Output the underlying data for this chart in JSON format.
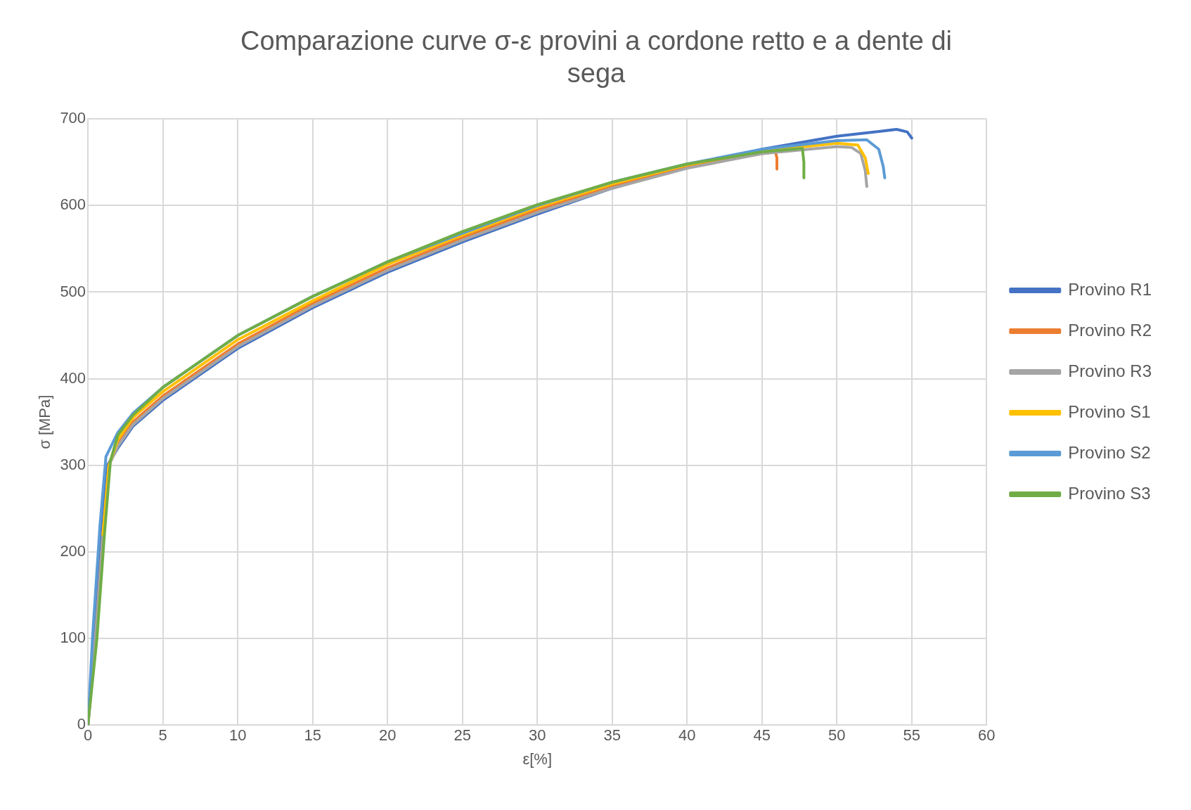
{
  "chart_data": {
    "type": "line",
    "title": "Comparazione curve σ-ε provini a cordone retto e a dente di sega",
    "xlabel": "ε[%]",
    "ylabel": "σ [MPa]",
    "xlim": [
      0,
      60
    ],
    "xticks": [
      0,
      5,
      10,
      15,
      20,
      25,
      30,
      35,
      40,
      45,
      50,
      55,
      60
    ],
    "ylim": [
      0,
      700
    ],
    "yticks": [
      0,
      100,
      200,
      300,
      400,
      500,
      600,
      700
    ],
    "grid": true,
    "legend": "right",
    "marker": "none",
    "line_style": "solid",
    "series": [
      {
        "name": "Provino R1",
        "color": "#4472c4",
        "x": [
          0,
          0.4,
          0.9,
          1.3,
          2,
          3,
          5,
          10,
          15,
          20,
          25,
          30,
          35,
          40,
          45,
          50,
          53,
          54,
          54.7,
          55
        ],
        "values": [
          0,
          100,
          230,
          300,
          320,
          345,
          375,
          435,
          482,
          523,
          558,
          590,
          620,
          645,
          665,
          680,
          686,
          688,
          685,
          678
        ]
      },
      {
        "name": "Provino R2",
        "color": "#ed7d31",
        "x": [
          0,
          0.5,
          1,
          1.4,
          2,
          3,
          5,
          10,
          15,
          20,
          25,
          30,
          35,
          40,
          45,
          45.9,
          46,
          46
        ],
        "values": [
          0,
          100,
          220,
          300,
          325,
          350,
          380,
          440,
          487,
          528,
          563,
          595,
          623,
          646,
          660,
          662,
          655,
          642
        ]
      },
      {
        "name": "Provino R3",
        "color": "#a5a5a5",
        "x": [
          0,
          0.5,
          1,
          1.4,
          2,
          3,
          5,
          10,
          15,
          20,
          25,
          30,
          35,
          40,
          45,
          50,
          51,
          51.6,
          51.9,
          52
        ],
        "values": [
          0,
          100,
          220,
          300,
          322,
          347,
          377,
          437,
          484,
          525,
          560,
          592,
          620,
          643,
          660,
          668,
          667,
          660,
          640,
          622
        ]
      },
      {
        "name": "Provino S1",
        "color": "#ffc000",
        "x": [
          1,
          1.4,
          2,
          3,
          5,
          10,
          15,
          20,
          25,
          30,
          35,
          40,
          45,
          50,
          51.4,
          51.9,
          52.1
        ],
        "values": [
          220,
          300,
          330,
          355,
          385,
          445,
          490,
          532,
          566,
          598,
          625,
          647,
          663,
          672,
          670,
          655,
          637
        ]
      },
      {
        "name": "Provino S2",
        "color": "#5b9bd5",
        "x": [
          0,
          0.3,
          0.8,
          1.2,
          2,
          3,
          5,
          10,
          15,
          20,
          25,
          30,
          35,
          40,
          45,
          50,
          52,
          52.8,
          53.1,
          53.2
        ],
        "values": [
          0,
          100,
          230,
          310,
          338,
          360,
          390,
          450,
          495,
          535,
          568,
          600,
          627,
          648,
          665,
          675,
          676,
          665,
          645,
          632
        ]
      },
      {
        "name": "Provino S3",
        "color": "#70ad47",
        "x": [
          0,
          0.6,
          1.1,
          1.5,
          2,
          3,
          5,
          10,
          15,
          20,
          25,
          30,
          35,
          40,
          45,
          47.7,
          47.8,
          47.8
        ],
        "values": [
          0,
          100,
          220,
          305,
          335,
          358,
          390,
          450,
          495,
          535,
          570,
          601,
          627,
          648,
          662,
          666,
          650,
          632
        ]
      }
    ]
  }
}
